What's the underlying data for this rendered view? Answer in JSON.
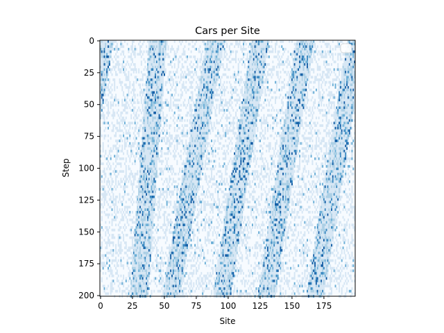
{
  "chart_data": {
    "type": "heatmap",
    "title": "Cars per Site",
    "xlabel": "Site",
    "ylabel": "Step",
    "x_range": [
      0,
      199
    ],
    "y_range": [
      0,
      200
    ],
    "y_inverted": true,
    "x_ticks": [
      0,
      25,
      50,
      75,
      100,
      125,
      150,
      175
    ],
    "y_ticks": [
      0,
      25,
      50,
      75,
      100,
      125,
      150,
      175,
      200
    ],
    "grid": false,
    "legend": "upper right (empty)",
    "colormap": [
      "#f7fbff",
      "#d6e6f4",
      "#abcfe5",
      "#6aaed6",
      "#3787c0",
      "#105ba4",
      "#08306b"
    ],
    "description_of_values": "number of cars per site at each step; mostly 0-1 with sparse higher values along jam bands",
    "jam_bands": [
      {
        "site_at_step_0": 3,
        "site_at_step_200": -30
      },
      {
        "site_at_step_0": 45,
        "site_at_step_200": 30
      },
      {
        "site_at_step_0": 90,
        "site_at_step_200": 55
      },
      {
        "site_at_step_0": 125,
        "site_at_step_200": 95
      },
      {
        "site_at_step_0": 160,
        "site_at_step_200": 130
      },
      {
        "site_at_step_0": 200,
        "site_at_step_200": 168
      }
    ]
  },
  "colors": {
    "background": "#ffffff",
    "axes": "#000000"
  }
}
